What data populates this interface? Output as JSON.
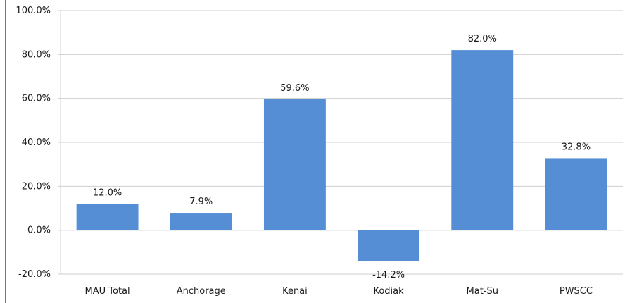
{
  "chart_data": {
    "type": "bar",
    "categories": [
      "MAU Total",
      "Anchorage",
      "Kenai",
      "Kodiak",
      "Mat-Su",
      "PWSCC"
    ],
    "values": [
      12.0,
      7.9,
      59.6,
      -14.2,
      82.0,
      32.8
    ],
    "data_labels": [
      "12.0%",
      "7.9%",
      "59.6%",
      "-14.2%",
      "82.0%",
      "32.8%"
    ],
    "ylim": [
      -20,
      100
    ],
    "yticks": [
      -20,
      0,
      20,
      40,
      60,
      80,
      100
    ],
    "ytick_labels": [
      "-20.0%",
      "0.0%",
      "20.0%",
      "40.0%",
      "60.0%",
      "80.0%",
      "100.0%"
    ],
    "grid": true,
    "legend": "none",
    "bar_color": "#558ed5",
    "title": "",
    "xlabel": "",
    "ylabel": ""
  }
}
